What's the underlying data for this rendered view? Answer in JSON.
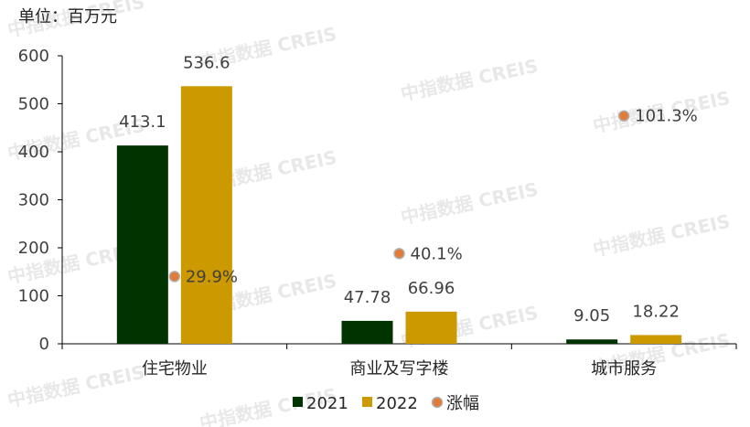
{
  "unit_label": "单位：百万元",
  "watermark": "中指数据 CREIS",
  "chart_data": {
    "type": "bar",
    "categories": [
      "住宅物业",
      "商业及写字楼",
      "城市服务"
    ],
    "series": [
      {
        "name": "2021",
        "values": [
          413.1,
          47.78,
          9.05
        ],
        "labels": [
          "413.1",
          "47.78",
          "9.05"
        ],
        "color": "#003300"
      },
      {
        "name": "2022",
        "values": [
          536.6,
          66.96,
          18.22
        ],
        "labels": [
          "536.6",
          "66.96",
          "18.22"
        ],
        "color": "#cc9900"
      }
    ],
    "growth": {
      "name": "涨幅",
      "values": [
        29.9,
        40.1,
        101.3
      ],
      "labels": [
        "29.9%",
        "40.1%",
        "101.3%"
      ],
      "color": "#e07b39"
    },
    "y_ticks": [
      "0",
      "100",
      "200",
      "300",
      "400",
      "500",
      "600"
    ],
    "ylim": [
      0,
      600
    ],
    "legend_position": "bottom"
  }
}
